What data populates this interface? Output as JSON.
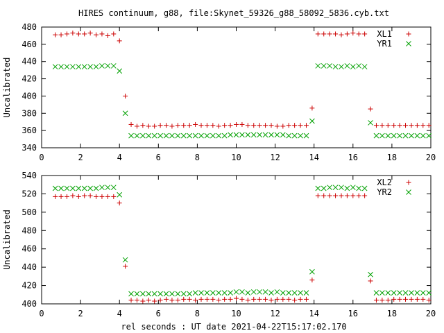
{
  "title": "HIRES continuum, g88, file:Skynet_59326_g88_58092_5836.cyb.txt",
  "xlabel": "rel seconds : UT date 2021-04-22T15:17:02.170",
  "colors": {
    "xl": "#cc0000",
    "yr": "#00a000"
  },
  "chart_data": [
    {
      "type": "scatter",
      "ylabel": "Uncalibrated",
      "xlim": [
        0,
        20
      ],
      "ylim": [
        340,
        480
      ],
      "xticks": [
        0,
        2,
        4,
        6,
        8,
        10,
        12,
        14,
        16,
        18,
        20
      ],
      "yticks": [
        340,
        360,
        380,
        400,
        420,
        440,
        460,
        480
      ],
      "legend": "top-right",
      "series": [
        {
          "name": "XL1",
          "marker": "plus",
          "points": [
            [
              0.7,
              471
            ],
            [
              1.0,
              471
            ],
            [
              1.3,
              472
            ],
            [
              1.6,
              473
            ],
            [
              1.9,
              472
            ],
            [
              2.2,
              472
            ],
            [
              2.5,
              473
            ],
            [
              2.8,
              471
            ],
            [
              3.1,
              472
            ],
            [
              3.4,
              470
            ],
            [
              3.7,
              472
            ],
            [
              4.0,
              464
            ],
            [
              4.3,
              400
            ],
            [
              4.6,
              367
            ],
            [
              4.9,
              365
            ],
            [
              5.2,
              366
            ],
            [
              5.5,
              365
            ],
            [
              5.8,
              365
            ],
            [
              6.1,
              366
            ],
            [
              6.4,
              366
            ],
            [
              6.7,
              365
            ],
            [
              7.0,
              366
            ],
            [
              7.3,
              366
            ],
            [
              7.6,
              366
            ],
            [
              7.9,
              367
            ],
            [
              8.2,
              366
            ],
            [
              8.5,
              366
            ],
            [
              8.8,
              366
            ],
            [
              9.1,
              365
            ],
            [
              9.4,
              366
            ],
            [
              9.7,
              366
            ],
            [
              10.0,
              367
            ],
            [
              10.3,
              367
            ],
            [
              10.6,
              366
            ],
            [
              10.9,
              366
            ],
            [
              11.2,
              366
            ],
            [
              11.5,
              366
            ],
            [
              11.8,
              366
            ],
            [
              12.1,
              365
            ],
            [
              12.4,
              365
            ],
            [
              12.7,
              366
            ],
            [
              13.0,
              366
            ],
            [
              13.3,
              366
            ],
            [
              13.6,
              366
            ],
            [
              13.9,
              386
            ],
            [
              14.2,
              472
            ],
            [
              14.5,
              472
            ],
            [
              14.8,
              472
            ],
            [
              15.1,
              472
            ],
            [
              15.4,
              471
            ],
            [
              15.7,
              472
            ],
            [
              16.0,
              473
            ],
            [
              16.3,
              472
            ],
            [
              16.6,
              472
            ],
            [
              16.9,
              385
            ],
            [
              17.2,
              366
            ],
            [
              17.5,
              366
            ],
            [
              17.8,
              366
            ],
            [
              18.1,
              366
            ],
            [
              18.4,
              366
            ],
            [
              18.7,
              366
            ],
            [
              19.0,
              366
            ],
            [
              19.3,
              366
            ],
            [
              19.6,
              366
            ],
            [
              19.9,
              366
            ]
          ]
        },
        {
          "name": "YR1",
          "marker": "cross",
          "points": [
            [
              0.7,
              434
            ],
            [
              1.0,
              434
            ],
            [
              1.3,
              434
            ],
            [
              1.6,
              434
            ],
            [
              1.9,
              434
            ],
            [
              2.2,
              434
            ],
            [
              2.5,
              434
            ],
            [
              2.8,
              434
            ],
            [
              3.1,
              435
            ],
            [
              3.4,
              435
            ],
            [
              3.7,
              435
            ],
            [
              4.0,
              429
            ],
            [
              4.3,
              380
            ],
            [
              4.6,
              354
            ],
            [
              4.9,
              354
            ],
            [
              5.2,
              354
            ],
            [
              5.5,
              354
            ],
            [
              5.8,
              354
            ],
            [
              6.1,
              354
            ],
            [
              6.4,
              354
            ],
            [
              6.7,
              354
            ],
            [
              7.0,
              354
            ],
            [
              7.3,
              354
            ],
            [
              7.6,
              354
            ],
            [
              7.9,
              354
            ],
            [
              8.2,
              354
            ],
            [
              8.5,
              354
            ],
            [
              8.8,
              354
            ],
            [
              9.1,
              354
            ],
            [
              9.4,
              354
            ],
            [
              9.7,
              355
            ],
            [
              10.0,
              355
            ],
            [
              10.3,
              355
            ],
            [
              10.6,
              355
            ],
            [
              10.9,
              355
            ],
            [
              11.2,
              355
            ],
            [
              11.5,
              355
            ],
            [
              11.8,
              355
            ],
            [
              12.1,
              355
            ],
            [
              12.4,
              355
            ],
            [
              12.7,
              354
            ],
            [
              13.0,
              354
            ],
            [
              13.3,
              354
            ],
            [
              13.6,
              354
            ],
            [
              13.9,
              371
            ],
            [
              14.2,
              435
            ],
            [
              14.5,
              435
            ],
            [
              14.8,
              435
            ],
            [
              15.1,
              434
            ],
            [
              15.4,
              434
            ],
            [
              15.7,
              435
            ],
            [
              16.0,
              434
            ],
            [
              16.3,
              435
            ],
            [
              16.6,
              434
            ],
            [
              16.9,
              369
            ],
            [
              17.2,
              354
            ],
            [
              17.5,
              354
            ],
            [
              17.8,
              354
            ],
            [
              18.1,
              354
            ],
            [
              18.4,
              354
            ],
            [
              18.7,
              354
            ],
            [
              19.0,
              354
            ],
            [
              19.3,
              354
            ],
            [
              19.6,
              354
            ],
            [
              19.9,
              354
            ]
          ]
        }
      ]
    },
    {
      "type": "scatter",
      "ylabel": "Uncalibrated",
      "xlim": [
        0,
        20
      ],
      "ylim": [
        400,
        540
      ],
      "xticks": [
        0,
        2,
        4,
        6,
        8,
        10,
        12,
        14,
        16,
        18,
        20
      ],
      "yticks": [
        400,
        420,
        440,
        460,
        480,
        500,
        520,
        540
      ],
      "legend": "top-right",
      "series": [
        {
          "name": "XL2",
          "marker": "plus",
          "points": [
            [
              0.7,
              517
            ],
            [
              1.0,
              517
            ],
            [
              1.3,
              517
            ],
            [
              1.6,
              518
            ],
            [
              1.9,
              517
            ],
            [
              2.2,
              518
            ],
            [
              2.5,
              518
            ],
            [
              2.8,
              517
            ],
            [
              3.1,
              517
            ],
            [
              3.4,
              517
            ],
            [
              3.7,
              517
            ],
            [
              4.0,
              510
            ],
            [
              4.3,
              441
            ],
            [
              4.6,
              404
            ],
            [
              4.9,
              404
            ],
            [
              5.2,
              403
            ],
            [
              5.5,
              404
            ],
            [
              5.8,
              403
            ],
            [
              6.1,
              404
            ],
            [
              6.4,
              405
            ],
            [
              6.7,
              404
            ],
            [
              7.0,
              404
            ],
            [
              7.3,
              405
            ],
            [
              7.6,
              405
            ],
            [
              7.9,
              404
            ],
            [
              8.2,
              405
            ],
            [
              8.5,
              405
            ],
            [
              8.8,
              405
            ],
            [
              9.1,
              404
            ],
            [
              9.4,
              405
            ],
            [
              9.7,
              405
            ],
            [
              10.0,
              406
            ],
            [
              10.3,
              405
            ],
            [
              10.6,
              404
            ],
            [
              10.9,
              405
            ],
            [
              11.2,
              405
            ],
            [
              11.5,
              405
            ],
            [
              11.8,
              404
            ],
            [
              12.1,
              405
            ],
            [
              12.4,
              405
            ],
            [
              12.7,
              405
            ],
            [
              13.0,
              404
            ],
            [
              13.3,
              405
            ],
            [
              13.6,
              405
            ],
            [
              13.9,
              426
            ],
            [
              14.2,
              518
            ],
            [
              14.5,
              518
            ],
            [
              14.8,
              518
            ],
            [
              15.1,
              518
            ],
            [
              15.4,
              518
            ],
            [
              15.7,
              518
            ],
            [
              16.0,
              518
            ],
            [
              16.3,
              518
            ],
            [
              16.6,
              518
            ],
            [
              16.9,
              425
            ],
            [
              17.2,
              404
            ],
            [
              17.5,
              404
            ],
            [
              17.8,
              404
            ],
            [
              18.1,
              405
            ],
            [
              18.4,
              405
            ],
            [
              18.7,
              405
            ],
            [
              19.0,
              405
            ],
            [
              19.3,
              405
            ],
            [
              19.6,
              405
            ],
            [
              19.9,
              404
            ]
          ]
        },
        {
          "name": "YR2",
          "marker": "cross",
          "points": [
            [
              0.7,
              526
            ],
            [
              1.0,
              526
            ],
            [
              1.3,
              526
            ],
            [
              1.6,
              526
            ],
            [
              1.9,
              526
            ],
            [
              2.2,
              526
            ],
            [
              2.5,
              526
            ],
            [
              2.8,
              526
            ],
            [
              3.1,
              527
            ],
            [
              3.4,
              527
            ],
            [
              3.7,
              527
            ],
            [
              4.0,
              519
            ],
            [
              4.3,
              448
            ],
            [
              4.6,
              411
            ],
            [
              4.9,
              411
            ],
            [
              5.2,
              411
            ],
            [
              5.5,
              411
            ],
            [
              5.8,
              411
            ],
            [
              6.1,
              411
            ],
            [
              6.4,
              411
            ],
            [
              6.7,
              411
            ],
            [
              7.0,
              411
            ],
            [
              7.3,
              411
            ],
            [
              7.6,
              411
            ],
            [
              7.9,
              412
            ],
            [
              8.2,
              412
            ],
            [
              8.5,
              412
            ],
            [
              8.8,
              412
            ],
            [
              9.1,
              412
            ],
            [
              9.4,
              412
            ],
            [
              9.7,
              412
            ],
            [
              10.0,
              413
            ],
            [
              10.3,
              413
            ],
            [
              10.6,
              412
            ],
            [
              10.9,
              413
            ],
            [
              11.2,
              413
            ],
            [
              11.5,
              413
            ],
            [
              11.8,
              412
            ],
            [
              12.1,
              413
            ],
            [
              12.4,
              412
            ],
            [
              12.7,
              412
            ],
            [
              13.0,
              412
            ],
            [
              13.3,
              412
            ],
            [
              13.6,
              412
            ],
            [
              13.9,
              435
            ],
            [
              14.2,
              526
            ],
            [
              14.5,
              526
            ],
            [
              14.8,
              527
            ],
            [
              15.1,
              527
            ],
            [
              15.4,
              527
            ],
            [
              15.7,
              526
            ],
            [
              16.0,
              527
            ],
            [
              16.3,
              526
            ],
            [
              16.6,
              526
            ],
            [
              16.9,
              432
            ],
            [
              17.2,
              412
            ],
            [
              17.5,
              412
            ],
            [
              17.8,
              412
            ],
            [
              18.1,
              412
            ],
            [
              18.4,
              412
            ],
            [
              18.7,
              412
            ],
            [
              19.0,
              412
            ],
            [
              19.3,
              412
            ],
            [
              19.6,
              412
            ],
            [
              19.9,
              412
            ]
          ]
        }
      ]
    }
  ]
}
